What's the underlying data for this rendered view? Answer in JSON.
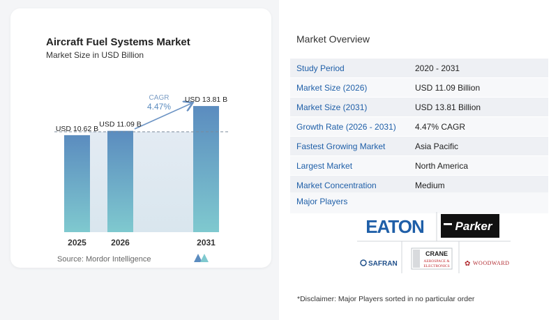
{
  "chart": {
    "title": "Aircraft Fuel Systems Market",
    "subtitle": "Market Size in USD Billion",
    "source": "Source:  Mordor Intelligence",
    "cagr_label": "CAGR",
    "cagr_value": "4.47%",
    "colors": {
      "bar_top": "#5b8cbf",
      "bar_bottom": "#7fc9cf",
      "arrow": "#6b93c4",
      "cagr_text": "#5b8cbf"
    }
  },
  "chart_data": {
    "type": "bar",
    "title": "Aircraft Fuel Systems Market",
    "subtitle": "Market Size in USD Billion",
    "categories": [
      "2025",
      "2026",
      "2031"
    ],
    "values": [
      10.62,
      11.09,
      13.81
    ],
    "data_labels": [
      "USD 10.62 B",
      "USD 11.09 B",
      "USD 13.81 B"
    ],
    "annotation": "CAGR 4.47%",
    "xlabel": "",
    "ylabel": "",
    "grid": false
  },
  "overview": {
    "title": "Market Overview",
    "rows": [
      {
        "label": "Study Period",
        "value": "2020 - 2031"
      },
      {
        "label": "Market Size (2026)",
        "value": "USD 11.09 Billion"
      },
      {
        "label": "Market Size (2031)",
        "value": "USD 13.81 Billion"
      },
      {
        "label": "Growth Rate (2026 - 2031)",
        "value": "4.47% CAGR"
      },
      {
        "label": "Fastest Growing Market",
        "value": "Asia Pacific"
      },
      {
        "label": "Largest Market",
        "value": "North America"
      },
      {
        "label": "Market Concentration",
        "value": "Medium"
      }
    ],
    "players_label": "Major Players",
    "players": {
      "eaton": "EATON",
      "parker": "Parker",
      "crane_line1": "CRANE",
      "crane_line2": "AEROSPACE &",
      "crane_line3": "ELECTRONICS",
      "safran": "SAFRAN",
      "woodward": "WOODWARD"
    }
  },
  "disclaimer": "*Disclaimer: Major Players sorted in no particular order"
}
